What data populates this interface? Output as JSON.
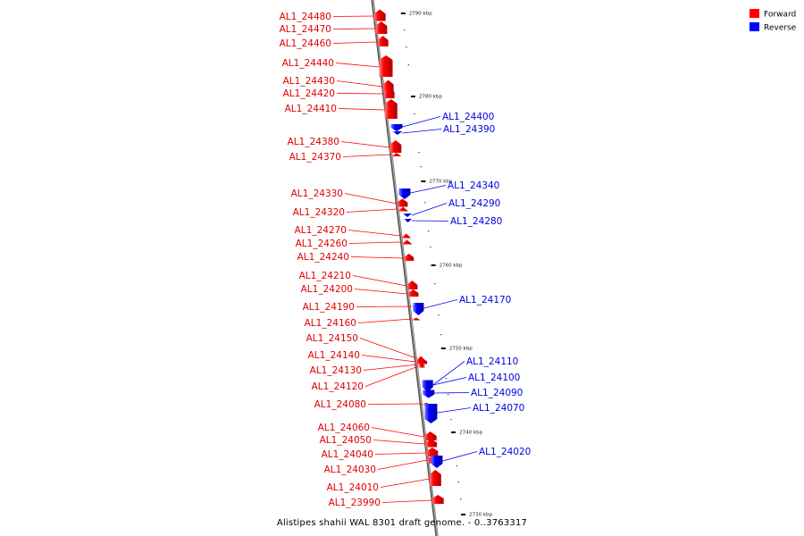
{
  "caption": "Alistipes shahii WAL 8301 draft genome. - 0..3763317",
  "colors": {
    "forward": "#ff0000",
    "reverse": "#0000ff",
    "backbone": "#888888"
  },
  "legend": [
    {
      "label": "Forward",
      "strand": "forward"
    },
    {
      "label": "Reverse",
      "strand": "reverse"
    }
  ],
  "ticks": [
    "2790 kbp",
    "2780 kbp",
    "2770 kbp",
    "2760 kbp",
    "2750 kbp",
    "2740 kbp",
    "2730 kbp"
  ],
  "forward_genes": [
    "AL1_24480",
    "AL1_24470",
    "AL1_24460",
    "AL1_24440",
    "AL1_24430",
    "AL1_24420",
    "AL1_24410",
    "AL1_24380",
    "AL1_24370",
    "AL1_24330",
    "AL1_24320",
    "AL1_24270",
    "AL1_24260",
    "AL1_24240",
    "AL1_24210",
    "AL1_24200",
    "AL1_24190",
    "AL1_24160",
    "AL1_24150",
    "AL1_24140",
    "AL1_24130",
    "AL1_24120",
    "AL1_24080",
    "AL1_24060",
    "AL1_24050",
    "AL1_24040",
    "AL1_24030",
    "AL1_24010",
    "AL1_23990"
  ],
  "reverse_genes": [
    "AL1_24400",
    "AL1_24390",
    "AL1_24340",
    "AL1_24290",
    "AL1_24280",
    "AL1_24170",
    "AL1_24110",
    "AL1_24100",
    "AL1_24090",
    "AL1_24070",
    "AL1_24020"
  ]
}
